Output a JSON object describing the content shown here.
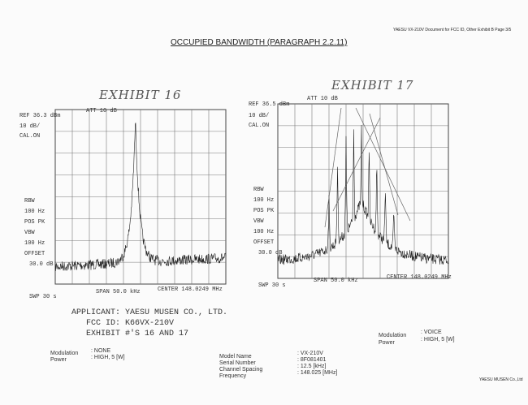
{
  "header_note": "YAESU VX-210V Document for FCC ID, Other Exhibit B Page 3/5",
  "title": "OCCUPIED BANDWIDTH (PARAGRAPH 2.2.11)",
  "plots": [
    {
      "exhibit": "EXHIBIT 16",
      "ref": "REF  36.3 dBm",
      "att": "ATT 10 dB",
      "scale": "10 dB/",
      "cal": "CAL.ON",
      "rbw_label": "RBW",
      "rbw": "100 Hz",
      "detector": "POS PK",
      "vbw_label": "VBW",
      "vbw": "100 Hz",
      "offset_label": "OFFSET",
      "offset": "30.0 dB",
      "sweep": "SWP 30 s",
      "span": "SPAN 50.0 kHz",
      "center": "CENTER 148.0249 MHz"
    },
    {
      "exhibit": "EXHIBIT 17",
      "ref": "REF  36.5 dBm",
      "att": "ATT 10 dB",
      "scale": "10 dB/",
      "cal": "CAL.ON",
      "rbw_label": "RBW",
      "rbw": "100 Hz",
      "detector": "POS PK",
      "vbw_label": "VBW",
      "vbw": "100 Hz",
      "offset_label": "OFFSET",
      "offset": "30.0 dB",
      "sweep": "SWP 30 s",
      "span": "SPAN 50.0 kHz",
      "center": "CENTER 148.0249 MHz"
    }
  ],
  "applicant": {
    "applicant": "APPLICANT: YAESU MUSEN CO., LTD.",
    "fcc_id": "FCC ID: K66VX-210V",
    "exhibits": "EXHIBIT #'S 16 AND 17"
  },
  "conditions": [
    {
      "modulation_label": "Modulation",
      "modulation": ": NONE",
      "power_label": "Power",
      "power": ": HIGH, 5 [W]"
    },
    {
      "modulation_label": "Modulation",
      "modulation": ": VOICE",
      "power_label": "Power",
      "power": ": HIGH, 5 [W]"
    }
  ],
  "model": [
    {
      "label": "Model Name",
      "value": ": VX-210V"
    },
    {
      "label": "Serial Number",
      "value": ": 8F081401"
    },
    {
      "label": "Channel Spacing",
      "value": ": 12.5 [kHz]"
    },
    {
      "label": "Frequency",
      "value": ": 148.025 [MHz]"
    }
  ],
  "footer": "YAESU MUSEN Co.,Ltd"
}
